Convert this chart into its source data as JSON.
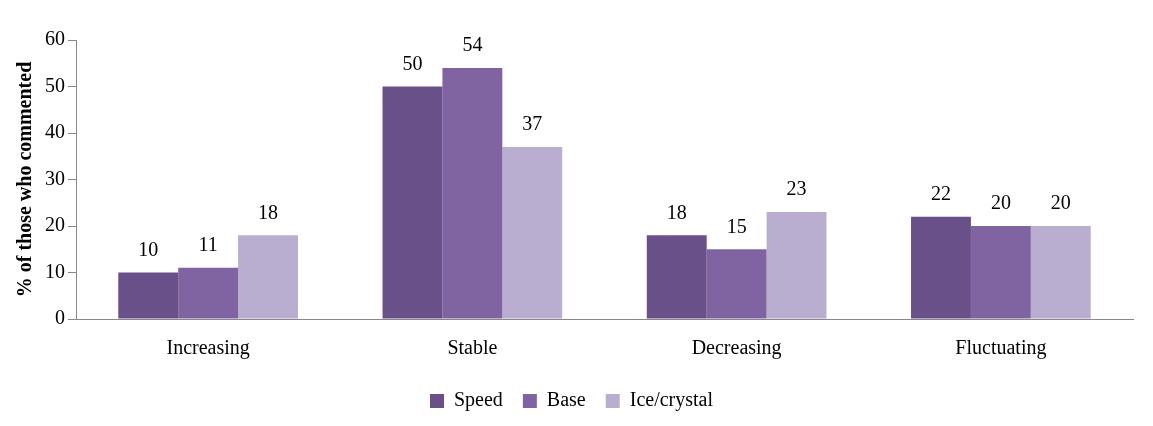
{
  "chart_data": {
    "type": "bar",
    "ylabel": "% of those who commented",
    "categories": [
      "Increasing",
      "Stable",
      "Decreasing",
      "Fluctuating"
    ],
    "series": [
      {
        "name": "Speed",
        "color": "#6a5089",
        "values": [
          10,
          50,
          18,
          22
        ]
      },
      {
        "name": "Base",
        "color": "#8064a2",
        "values": [
          11,
          54,
          15,
          20
        ]
      },
      {
        "name": "Ice/crystal",
        "color": "#b9aecf",
        "values": [
          18,
          37,
          23,
          20
        ]
      }
    ],
    "ylim": [
      0,
      60
    ],
    "yticks": [
      0,
      10,
      20,
      30,
      40,
      50,
      60
    ],
    "grid": false,
    "legend": "bottom",
    "data_labels": true
  }
}
